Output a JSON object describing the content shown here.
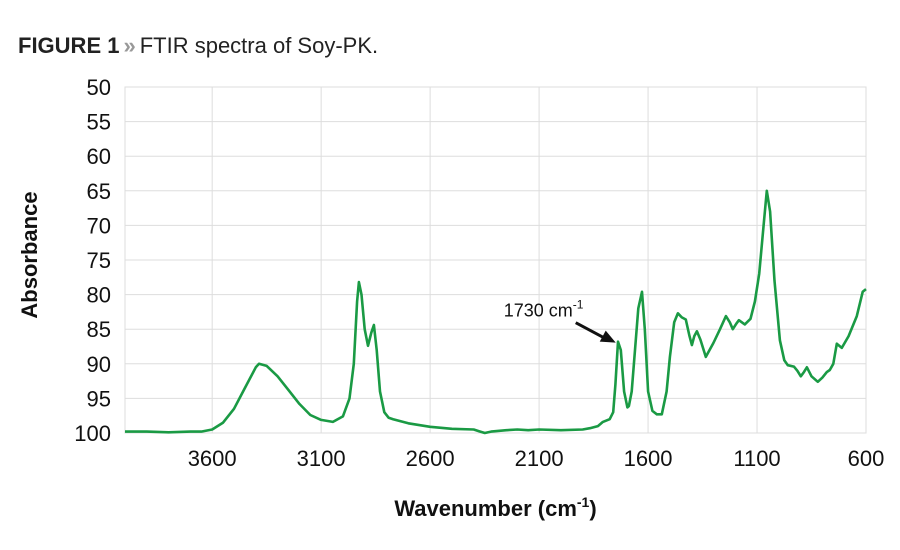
{
  "title": {
    "figure_label": "FIGURE 1",
    "separator": "»",
    "caption": "FTIR spectra of Soy-PK."
  },
  "chart_data": {
    "type": "line",
    "title": "FTIR spectra of Soy-PK.",
    "xlabel": {
      "text": "Wavenumber (cm",
      "superscript": "-1",
      "suffix": ")"
    },
    "ylabel": "Absorbance",
    "xlim": [
      4000,
      600
    ],
    "x_reversed": true,
    "ylim": [
      50,
      100
    ],
    "y_inverted": true,
    "x_ticks": [
      3600,
      3100,
      2600,
      2100,
      1600,
      1100,
      600
    ],
    "y_ticks": [
      50,
      55,
      60,
      65,
      70,
      75,
      80,
      85,
      90,
      95,
      100
    ],
    "grid": true,
    "line_color": "#1a9a44",
    "annotation": {
      "text": "1730 cm",
      "superscript": "-1",
      "x": 1730,
      "y": 86.8
    },
    "series": [
      {
        "x": [
          4000,
          3900,
          3800,
          3700,
          3650,
          3600,
          3550,
          3500,
          3450,
          3400,
          3385,
          3350,
          3300,
          3250,
          3200,
          3150,
          3100,
          3046,
          3000,
          2970,
          2950,
          2935,
          2927,
          2915,
          2900,
          2885,
          2870,
          2858,
          2845,
          2830,
          2810,
          2790,
          2770,
          2700,
          2600,
          2500,
          2400,
          2370,
          2349,
          2320,
          2250,
          2200,
          2150,
          2100,
          2000,
          1900,
          1867,
          1830,
          1807,
          1776,
          1760,
          1750,
          1738,
          1725,
          1710,
          1695,
          1688,
          1675,
          1660,
          1645,
          1628,
          1615,
          1600,
          1580,
          1560,
          1537,
          1515,
          1500,
          1480,
          1463,
          1445,
          1427,
          1410,
          1399,
          1388,
          1376,
          1360,
          1335,
          1300,
          1270,
          1243,
          1225,
          1211,
          1195,
          1183,
          1156,
          1130,
          1110,
          1090,
          1070,
          1055,
          1040,
          1020,
          995,
          975,
          959,
          931,
          915,
          899,
          885,
          871,
          850,
          821,
          800,
          780,
          766,
          750,
          734,
          711,
          680,
          642,
          615,
          600
        ],
        "y": [
          99.8,
          99.8,
          99.9,
          99.8,
          99.8,
          99.5,
          98.5,
          96.5,
          93.5,
          90.5,
          90.0,
          90.3,
          91.8,
          93.8,
          95.8,
          97.4,
          98.1,
          98.4,
          97.6,
          95,
          90,
          81,
          78.2,
          80,
          85,
          87.4,
          85.5,
          84.4,
          88,
          94,
          97,
          97.8,
          98,
          98.6,
          99.1,
          99.4,
          99.5,
          99.8,
          100,
          99.8,
          99.6,
          99.5,
          99.6,
          99.5,
          99.6,
          99.5,
          99.3,
          99,
          98.4,
          98,
          97,
          93,
          86.8,
          88,
          94,
          96.3,
          96.1,
          94,
          88,
          82,
          79.6,
          85,
          94,
          96.8,
          97.3,
          97.3,
          94,
          89,
          84,
          82.7,
          83.3,
          83.6,
          86,
          87.3,
          86,
          85.3,
          86.5,
          89,
          87,
          85,
          83.1,
          84,
          85,
          84.2,
          83.7,
          84.3,
          83.5,
          81,
          77,
          70,
          65,
          68,
          78,
          86.6,
          89.5,
          90.2,
          90.4,
          91,
          91.8,
          91.2,
          90.5,
          91.8,
          92.6,
          92,
          91.2,
          90.9,
          90,
          87.1,
          87.7,
          86,
          83.1,
          79.6,
          79.2
        ]
      }
    ]
  }
}
